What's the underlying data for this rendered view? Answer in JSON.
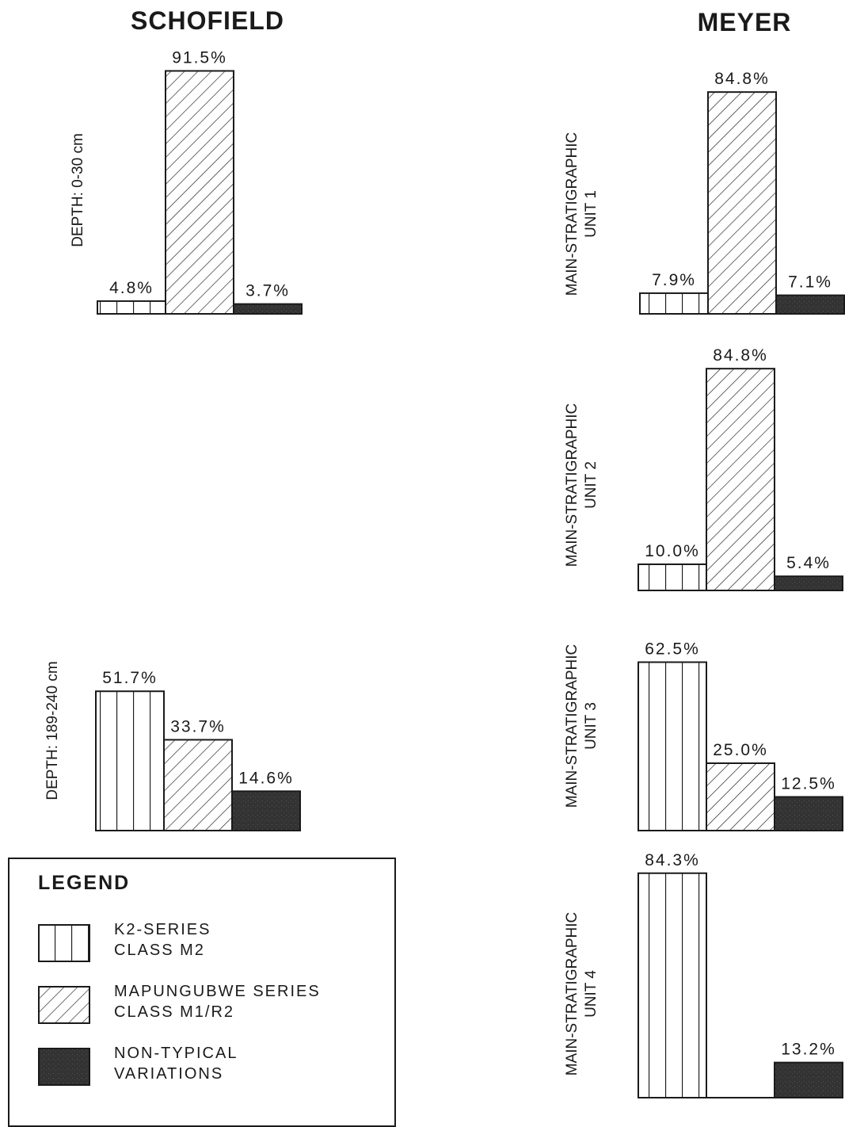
{
  "headers": {
    "left": "SCHOFIELD",
    "right": "MEYER"
  },
  "colors": {
    "ink": "#1a1a1a",
    "dark_fill": "#333333",
    "background": "#ffffff"
  },
  "chart_data": [
    {
      "type": "bar",
      "group": "SCHOFIELD",
      "ylabel": "DEPTH: 0-30 cm",
      "categories": [
        "K2-SERIES CLASS M2",
        "MAPUNGUBWE SERIES CLASS M1/R2",
        "NON-TYPICAL VARIATIONS"
      ],
      "values": [
        4.8,
        91.5,
        3.7
      ],
      "labels": [
        "4.8%",
        "91.5%",
        "3.7%"
      ]
    },
    {
      "type": "bar",
      "group": "SCHOFIELD",
      "ylabel": "DEPTH: 189-240 cm",
      "categories": [
        "K2-SERIES CLASS M2",
        "MAPUNGUBWE SERIES CLASS M1/R2",
        "NON-TYPICAL VARIATIONS"
      ],
      "values": [
        51.7,
        33.7,
        14.6
      ],
      "labels": [
        "51.7%",
        "33.7%",
        "14.6%"
      ]
    },
    {
      "type": "bar",
      "group": "MEYER",
      "ylabel": "MAIN-STRATIGRAPHIC\nUNIT 1",
      "categories": [
        "K2-SERIES CLASS M2",
        "MAPUNGUBWE SERIES CLASS M1/R2",
        "NON-TYPICAL VARIATIONS"
      ],
      "values": [
        7.9,
        84.8,
        7.1
      ],
      "labels": [
        "7.9%",
        "84.8%",
        "7.1%"
      ]
    },
    {
      "type": "bar",
      "group": "MEYER",
      "ylabel": "MAIN-STRATIGRAPHIC\nUNIT 2",
      "categories": [
        "K2-SERIES CLASS M2",
        "MAPUNGUBWE SERIES CLASS M1/R2",
        "NON-TYPICAL VARIATIONS"
      ],
      "values": [
        10.0,
        84.8,
        5.4
      ],
      "labels": [
        "10.0%",
        "84.8%",
        "5.4%"
      ]
    },
    {
      "type": "bar",
      "group": "MEYER",
      "ylabel": "MAIN-STRATIGRAPHIC\nUNIT 3",
      "categories": [
        "K2-SERIES CLASS M2",
        "MAPUNGUBWE SERIES CLASS M1/R2",
        "NON-TYPICAL VARIATIONS"
      ],
      "values": [
        62.5,
        25.0,
        12.5
      ],
      "labels": [
        "62.5%",
        "25.0%",
        "12.5%"
      ]
    },
    {
      "type": "bar",
      "group": "MEYER",
      "ylabel": "MAIN-STRATIGRAPHIC\nUNIT 4",
      "categories": [
        "K2-SERIES CLASS M2",
        "MAPUNGUBWE SERIES CLASS M1/R2",
        "NON-TYPICAL VARIATIONS"
      ],
      "values": [
        84.3,
        0,
        13.2
      ],
      "labels": [
        "84.3%",
        "",
        "13.2%"
      ]
    }
  ],
  "legend": {
    "title": "LEGEND",
    "items": [
      {
        "pattern": "vertical-lines",
        "label": "K2-SERIES\nCLASS  M2"
      },
      {
        "pattern": "diagonal-hatch",
        "label": "MAPUNGUBWE  SERIES\nCLASS  M1/R2"
      },
      {
        "pattern": "solid-dark",
        "label": "NON-TYPICAL\nVARIATIONS"
      }
    ]
  }
}
